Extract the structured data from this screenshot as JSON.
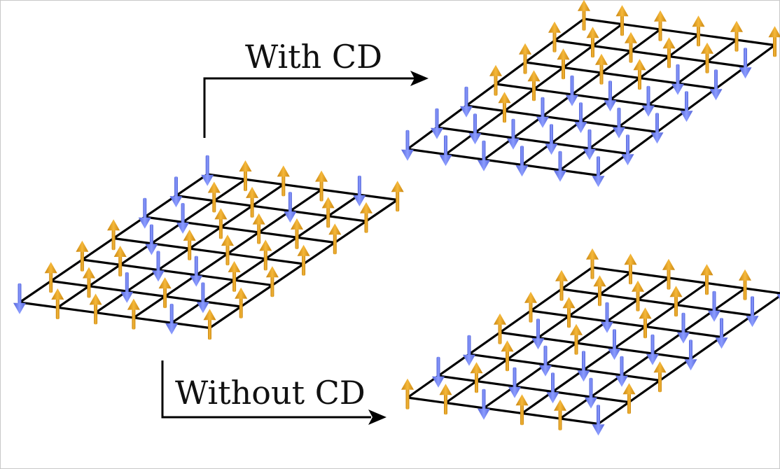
{
  "labels": {
    "with_cd": "With CD",
    "without_cd": "Without CD"
  },
  "colors": {
    "spin_up": "#e8a320",
    "spin_down": "#6b7ff0",
    "grid": "#000000"
  },
  "lattices": [
    {
      "id": "initial",
      "spins": [
        [
          "down",
          "up",
          "up",
          "up",
          "down",
          "up"
        ],
        [
          "up",
          "up",
          "down",
          "up",
          "down",
          "up"
        ],
        [
          "up",
          "up",
          "down",
          "down",
          "up",
          "up"
        ],
        [
          "up",
          "down",
          "up",
          "up",
          "up",
          "up"
        ],
        [
          "down",
          "down",
          "up",
          "up",
          "up",
          "up"
        ],
        [
          "down",
          "up",
          "up",
          "down",
          "up",
          "up"
        ],
        [
          "down",
          "up",
          "up",
          "up",
          "down",
          "up"
        ]
      ]
    },
    {
      "id": "with_cd",
      "spins": [
        [
          "down",
          "down",
          "down",
          "down",
          "down",
          "down"
        ],
        [
          "down",
          "down",
          "down",
          "down",
          "down",
          "down"
        ],
        [
          "down",
          "up",
          "down",
          "down",
          "down",
          "down"
        ],
        [
          "up",
          "up",
          "down",
          "down",
          "down",
          "down"
        ],
        [
          "up",
          "up",
          "up",
          "up",
          "down",
          "down"
        ],
        [
          "up",
          "up",
          "up",
          "up",
          "up",
          "down"
        ],
        [
          "up",
          "up",
          "up",
          "up",
          "up",
          "up"
        ]
      ]
    },
    {
      "id": "without_cd",
      "spins": [
        [
          "up",
          "up",
          "down",
          "up",
          "up",
          "down"
        ],
        [
          "down",
          "up",
          "down",
          "down",
          "down",
          "up"
        ],
        [
          "down",
          "up",
          "down",
          "down",
          "down",
          "up"
        ],
        [
          "up",
          "down",
          "up",
          "down",
          "down",
          "down"
        ],
        [
          "up",
          "up",
          "down",
          "up",
          "down",
          "down"
        ],
        [
          "up",
          "up",
          "up",
          "up",
          "down",
          "down"
        ],
        [
          "up",
          "up",
          "up",
          "up",
          "up",
          "down"
        ]
      ]
    }
  ]
}
